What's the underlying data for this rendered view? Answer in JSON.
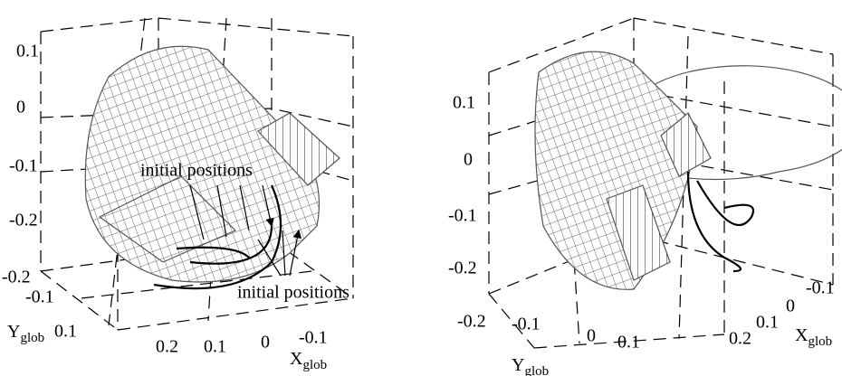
{
  "panels": [
    {
      "z_ticks": [
        "0.1",
        "0",
        "-0.1",
        "-0.2"
      ],
      "y_ticks": [
        "-0.2",
        "-0.1",
        "0.1"
      ],
      "x_ticks": [
        "0.2",
        "0.1",
        "0",
        "-0.1"
      ],
      "x_label": {
        "main": "X",
        "sub": "glob"
      },
      "y_label": {
        "main": "Y",
        "sub": "glob"
      },
      "annotations": [
        "initial positions",
        "initial positions"
      ]
    },
    {
      "z_ticks": [
        "0.1",
        "0",
        "-0.1",
        "-0.2"
      ],
      "y_ticks": [
        "-0.2",
        "-0.1",
        "0",
        "0.1"
      ],
      "x_ticks": [
        "-0.1",
        "0",
        "0.1",
        "0.2"
      ],
      "x_label": {
        "main": "X",
        "sub": "glob"
      },
      "y_label": {
        "main": "Y",
        "sub": "glob"
      }
    }
  ]
}
